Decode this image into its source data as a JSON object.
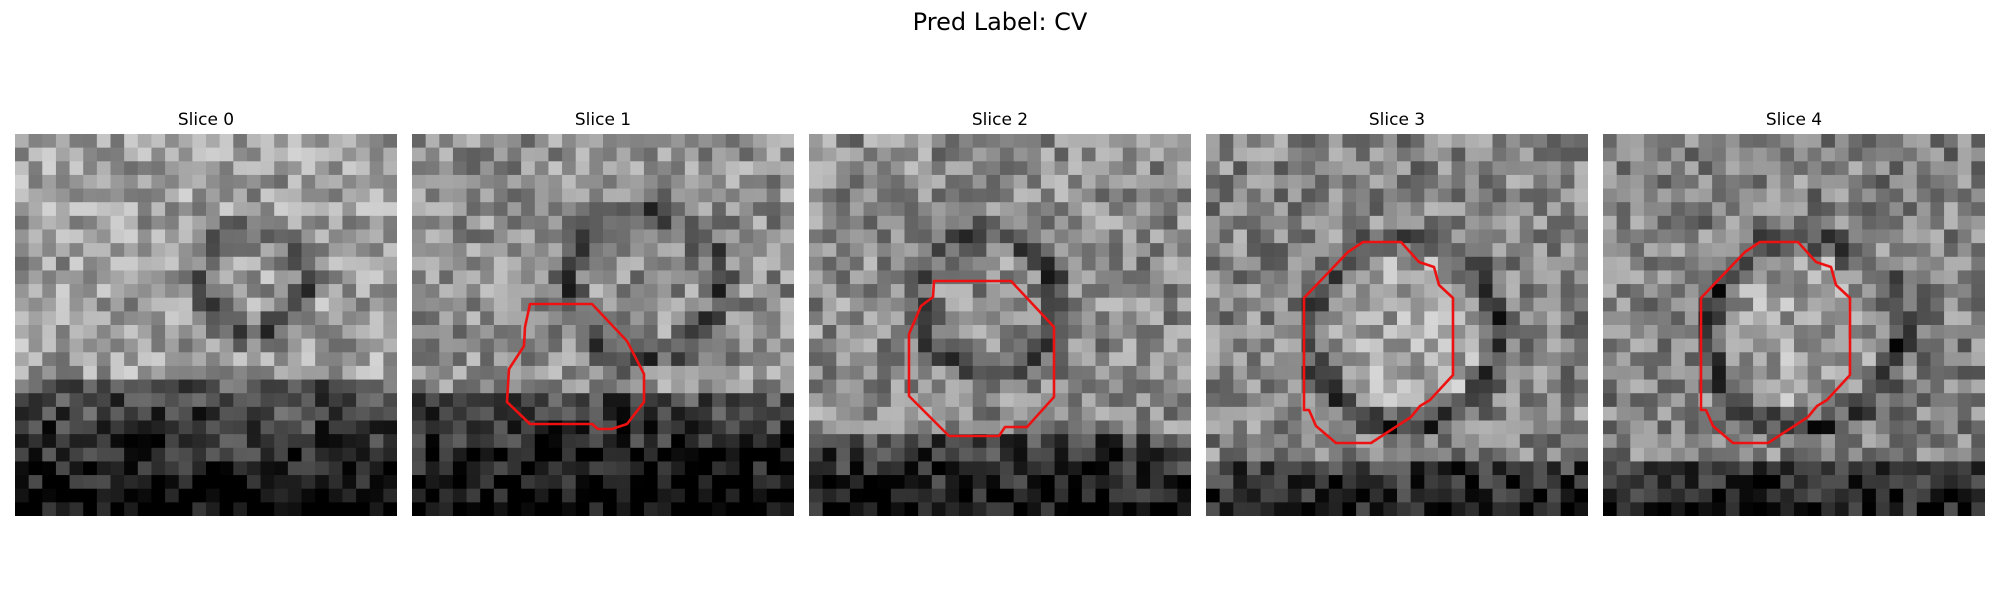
{
  "figure": {
    "title": "Pred Label: CV"
  },
  "contour_color": "#ee1111",
  "panels": [
    {
      "title": "Slice 0",
      "has_contour": false,
      "seed": 11,
      "base": 0.62
    },
    {
      "title": "Slice 1",
      "has_contour": true,
      "seed": 23,
      "base": 0.56
    },
    {
      "title": "Slice 2",
      "has_contour": true,
      "seed": 37,
      "base": 0.55
    },
    {
      "title": "Slice 3",
      "has_contour": true,
      "seed": 41,
      "base": 0.52
    },
    {
      "title": "Slice 4",
      "has_contour": true,
      "seed": 53,
      "base": 0.51
    }
  ]
}
